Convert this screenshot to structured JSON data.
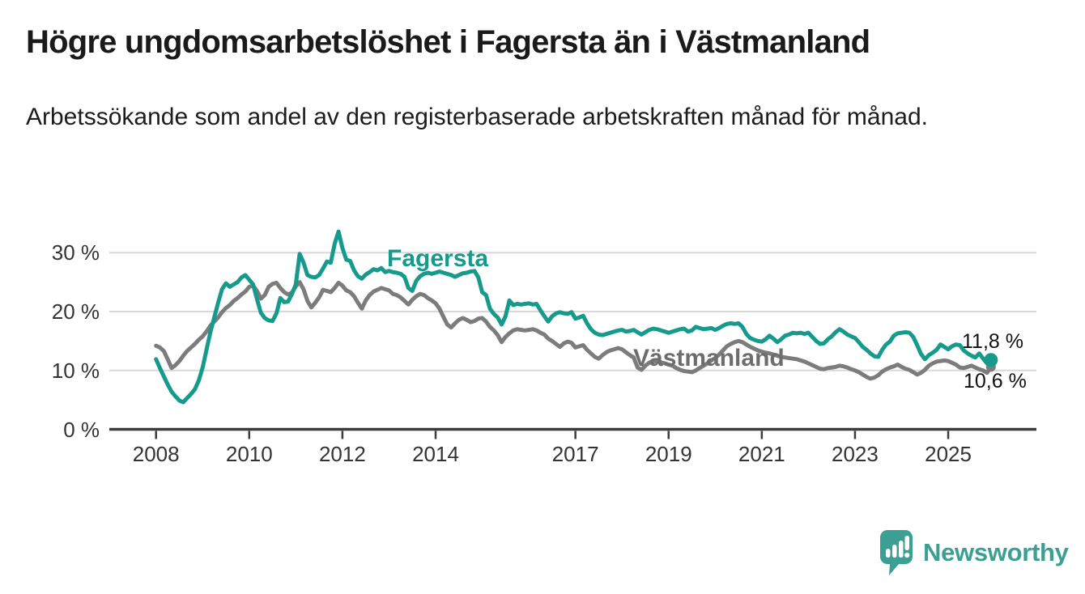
{
  "title": "Högre ungdomsarbetslöshet i Fagersta än i Västmanland",
  "subtitle": "Arbetssökande som andel av den registerbaserade arbetskraften månad för månad.",
  "chart_data": {
    "type": "line",
    "title": "Högre ungdomsarbetslöshet i Fagersta än i Västmanland",
    "xlabel": "",
    "ylabel": "",
    "y_unit": "%",
    "grid": "horizontal",
    "legend_position": "inline-labels",
    "x_start_year": 2008,
    "x_step_months": 1,
    "x_end": "2025-12",
    "ylim": [
      0,
      35
    ],
    "y_ticks": [
      {
        "value": 0,
        "label": "0 %"
      },
      {
        "value": 10,
        "label": "10 %"
      },
      {
        "value": 20,
        "label": "20 %"
      },
      {
        "value": 30,
        "label": "30 %"
      }
    ],
    "x_ticks": [
      {
        "year": 2008,
        "label": "2008"
      },
      {
        "year": 2010,
        "label": "2010"
      },
      {
        "year": 2012,
        "label": "2012"
      },
      {
        "year": 2014,
        "label": "2014"
      },
      {
        "year": 2017,
        "label": "2017"
      },
      {
        "year": 2019,
        "label": "2019"
      },
      {
        "year": 2021,
        "label": "2021"
      },
      {
        "year": 2023,
        "label": "2023"
      },
      {
        "year": 2025,
        "label": "2025"
      }
    ],
    "series": [
      {
        "name": "Västmanland",
        "color": "#7c7c7c",
        "end_label": "10,6 %",
        "end_value": 10.6,
        "values": [
          14.2,
          13.9,
          13.3,
          11.9,
          10.4,
          10.9,
          11.6,
          12.5,
          13.3,
          13.9,
          14.5,
          15.2,
          15.8,
          16.6,
          17.6,
          18.3,
          19.0,
          19.9,
          20.6,
          21.1,
          21.8,
          22.3,
          22.9,
          23.4,
          24.2,
          24.4,
          23.5,
          22.2,
          22.8,
          24.2,
          24.7,
          24.9,
          24.0,
          23.3,
          22.9,
          23.2,
          24.3,
          25.0,
          23.8,
          21.8,
          20.7,
          21.5,
          22.4,
          23.7,
          23.5,
          23.3,
          24.0,
          24.9,
          24.4,
          23.6,
          23.3,
          22.6,
          21.5,
          20.5,
          21.9,
          22.8,
          23.4,
          23.7,
          24.0,
          23.8,
          23.6,
          23.0,
          22.8,
          22.4,
          21.8,
          21.2,
          22.0,
          22.6,
          23.0,
          22.8,
          22.3,
          21.9,
          21.4,
          20.5,
          19.1,
          17.8,
          17.3,
          18.0,
          18.6,
          18.9,
          18.6,
          18.2,
          18.4,
          18.8,
          18.9,
          18.3,
          17.4,
          16.8,
          16.0,
          14.8,
          15.7,
          16.3,
          16.8,
          17.0,
          16.9,
          16.8,
          16.9,
          17.0,
          16.8,
          16.4,
          16.1,
          15.4,
          15.0,
          14.5,
          14.0,
          14.6,
          14.9,
          14.7,
          13.9,
          14.1,
          14.3,
          13.5,
          12.9,
          12.3,
          12.0,
          12.6,
          13.1,
          13.4,
          13.6,
          13.8,
          13.6,
          13.1,
          12.6,
          12.2,
          10.5,
          10.1,
          10.8,
          11.3,
          11.6,
          11.5,
          11.4,
          11.2,
          11.0,
          10.8,
          10.4,
          10.1,
          9.9,
          9.8,
          9.7,
          10.0,
          10.4,
          10.8,
          11.2,
          11.7,
          12.1,
          12.7,
          13.4,
          14.1,
          14.5,
          14.8,
          15.0,
          14.8,
          14.4,
          14.0,
          13.7,
          13.4,
          13.2,
          13.0,
          12.9,
          12.7,
          12.5,
          12.3,
          12.2,
          12.1,
          12.0,
          11.9,
          11.7,
          11.5,
          11.2,
          10.9,
          10.6,
          10.3,
          10.2,
          10.4,
          10.5,
          10.6,
          10.8,
          10.7,
          10.5,
          10.2,
          10.0,
          9.7,
          9.3,
          8.9,
          8.6,
          8.8,
          9.2,
          9.8,
          10.2,
          10.5,
          10.7,
          11.0,
          10.6,
          10.3,
          10.1,
          9.7,
          9.3,
          9.6,
          10.1,
          10.8,
          11.2,
          11.5,
          11.6,
          11.7,
          11.6,
          11.3,
          11.0,
          10.5,
          10.4,
          10.6,
          10.8,
          10.5,
          10.2,
          10.0,
          9.6,
          10.6
        ]
      },
      {
        "name": "Fagersta",
        "color": "#169a8c",
        "end_label": "11,8 %",
        "end_value": 11.8,
        "values": [
          11.9,
          10.4,
          9.0,
          7.6,
          6.4,
          5.6,
          4.9,
          4.6,
          5.3,
          6.0,
          6.8,
          8.3,
          10.5,
          13.5,
          16.5,
          19.0,
          21.5,
          23.8,
          24.8,
          24.2,
          24.6,
          25.0,
          25.8,
          26.2,
          25.4,
          24.6,
          22.1,
          19.8,
          18.9,
          18.5,
          18.4,
          19.7,
          22.3,
          21.6,
          21.7,
          23.0,
          24.6,
          29.8,
          28.3,
          26.2,
          25.9,
          25.8,
          26.2,
          27.3,
          28.5,
          28.3,
          31.5,
          33.6,
          30.8,
          28.8,
          28.6,
          27.0,
          26.0,
          25.6,
          26.3,
          26.7,
          27.2,
          27.0,
          27.4,
          26.7,
          26.9,
          26.7,
          26.6,
          26.4,
          25.9,
          24.0,
          23.5,
          25.2,
          26.0,
          26.4,
          26.6,
          26.4,
          26.6,
          26.8,
          26.6,
          26.4,
          26.2,
          25.9,
          26.2,
          26.5,
          26.6,
          26.8,
          26.9,
          25.8,
          23.3,
          22.8,
          20.5,
          19.6,
          19.0,
          17.8,
          19.2,
          21.9,
          21.1,
          21.3,
          21.2,
          21.3,
          21.4,
          21.2,
          21.3,
          20.2,
          19.2,
          18.3,
          19.2,
          19.7,
          19.9,
          19.7,
          19.6,
          19.9,
          18.8,
          19.0,
          19.3,
          18.0,
          17.0,
          16.4,
          16.1,
          16.0,
          16.2,
          16.4,
          16.6,
          16.8,
          16.9,
          16.6,
          16.7,
          16.9,
          16.5,
          16.1,
          16.5,
          16.9,
          17.1,
          17.0,
          16.8,
          16.6,
          16.4,
          16.6,
          16.8,
          17.0,
          17.1,
          16.6,
          16.8,
          17.4,
          17.2,
          17.0,
          17.1,
          17.2,
          16.9,
          17.2,
          17.6,
          17.9,
          18.0,
          17.9,
          18.0,
          17.4,
          16.2,
          15.5,
          15.2,
          15.0,
          14.9,
          15.3,
          15.9,
          15.4,
          14.8,
          15.3,
          15.9,
          16.1,
          16.4,
          16.3,
          16.4,
          16.2,
          16.4,
          15.7,
          15.0,
          14.5,
          14.6,
          15.3,
          15.8,
          16.5,
          17.0,
          16.6,
          16.1,
          15.8,
          15.5,
          14.8,
          14.0,
          13.5,
          12.9,
          12.4,
          12.3,
          13.5,
          14.4,
          14.9,
          15.9,
          16.3,
          16.4,
          16.5,
          16.4,
          15.7,
          14.3,
          12.8,
          11.9,
          12.6,
          13.0,
          13.5,
          14.4,
          14.0,
          13.6,
          14.1,
          14.4,
          14.3,
          13.4,
          12.9,
          12.5,
          12.2,
          12.9,
          12.0,
          11.2,
          11.8
        ]
      }
    ]
  },
  "footer": {
    "brand": "Newsworthy",
    "brand_color": "#3ba093"
  }
}
